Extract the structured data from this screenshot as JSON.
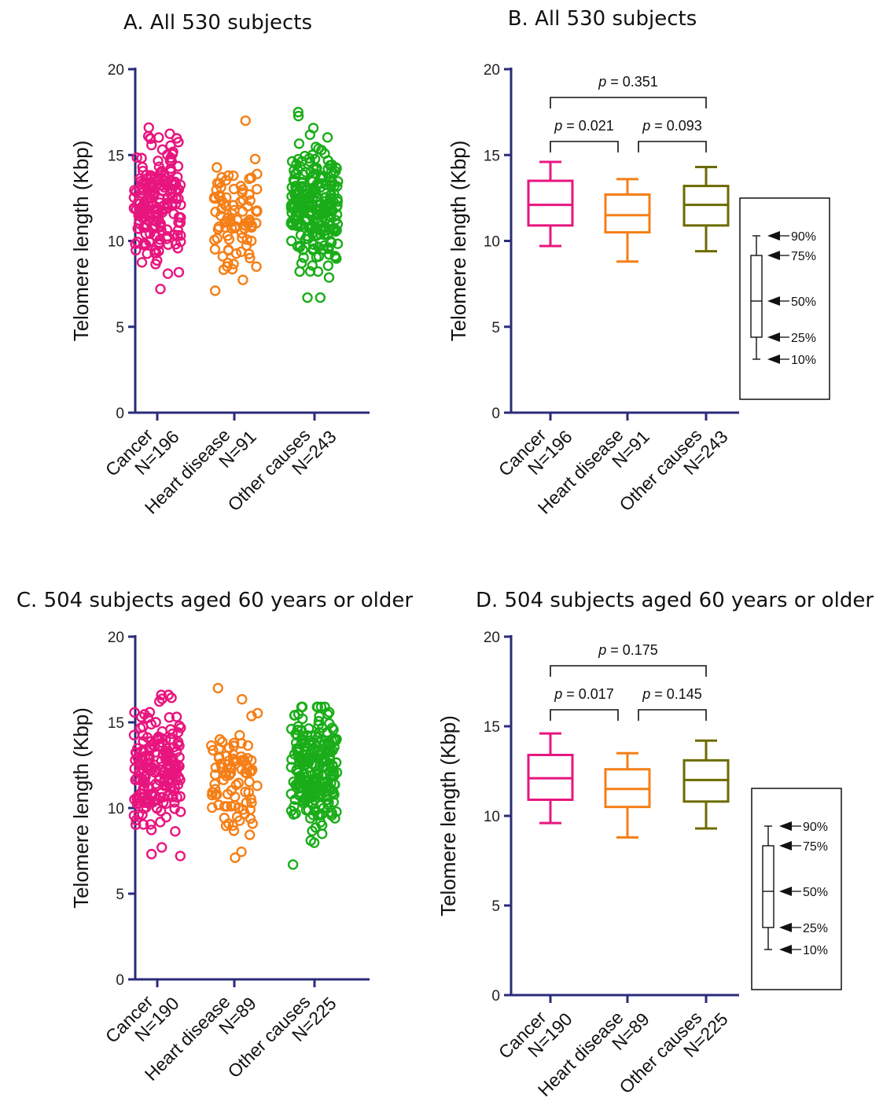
{
  "chart_data": [
    {
      "type": "scatter",
      "panel": "A",
      "title": "A. All 530 subjects",
      "ylabel": "Telomere length (Kbp)",
      "ylim": [
        0,
        20
      ],
      "yticks": [
        0,
        5,
        10,
        15,
        20
      ],
      "grid": false,
      "categories": [
        {
          "name": "Cancer",
          "n_label": "N=196",
          "color": "#e8157f",
          "median": 12.1,
          "spread_low": 7.2,
          "spread_high": 16.6,
          "count": 196
        },
        {
          "name": "Heart disease",
          "n_label": "N=91",
          "color": "#f57f17",
          "median": 11.5,
          "spread_low": 7.1,
          "spread_high": 17.0,
          "count": 91
        },
        {
          "name": "Other causes",
          "n_label": "N=243",
          "color": "#1aad19",
          "median": 12.0,
          "spread_low": 6.7,
          "spread_high": 17.5,
          "count": 243
        }
      ]
    },
    {
      "type": "box",
      "panel": "B",
      "title": "B. All 530 subjects",
      "ylabel": "Telomere length (Kbp)",
      "ylim": [
        0,
        20
      ],
      "yticks": [
        0,
        5,
        10,
        15,
        20
      ],
      "grid": false,
      "categories": [
        {
          "name": "Cancer",
          "n_label": "N=196",
          "color": "#e8157f",
          "p10": 9.7,
          "p25": 10.9,
          "p50": 12.1,
          "p75": 13.5,
          "p90": 14.6
        },
        {
          "name": "Heart disease",
          "n_label": "N=91",
          "color": "#f57f17",
          "p10": 8.8,
          "p25": 10.5,
          "p50": 11.5,
          "p75": 12.7,
          "p90": 13.6
        },
        {
          "name": "Other causes",
          "n_label": "N=243",
          "color": "#6b6b00",
          "p10": 9.4,
          "p25": 10.9,
          "p50": 12.1,
          "p75": 13.2,
          "p90": 14.3
        }
      ],
      "comparisons": [
        {
          "a": 0,
          "b": 1,
          "p": "0.021",
          "level": 1
        },
        {
          "a": 1,
          "b": 2,
          "p": "0.093",
          "level": 1
        },
        {
          "a": 0,
          "b": 2,
          "p": "0.351",
          "level": 2
        }
      ],
      "legend": {
        "placement": "right",
        "labels": [
          "90%",
          "75%",
          "50%",
          "25%",
          "10%"
        ]
      }
    },
    {
      "type": "scatter",
      "panel": "C",
      "title": "C. 504 subjects aged 60 years or older",
      "ylabel": "Telomere length (Kbp)",
      "ylim": [
        0,
        20
      ],
      "yticks": [
        0,
        5,
        10,
        15,
        20
      ],
      "grid": false,
      "categories": [
        {
          "name": "Cancer",
          "n_label": "N=190",
          "color": "#e8157f",
          "median": 12.1,
          "spread_low": 7.2,
          "spread_high": 16.6,
          "count": 190
        },
        {
          "name": "Heart disease",
          "n_label": "N=89",
          "color": "#f57f17",
          "median": 11.5,
          "spread_low": 7.1,
          "spread_high": 17.0,
          "count": 89
        },
        {
          "name": "Other causes",
          "n_label": "N=225",
          "color": "#1aad19",
          "median": 12.0,
          "spread_low": 6.7,
          "spread_high": 15.9,
          "count": 225
        }
      ]
    },
    {
      "type": "box",
      "panel": "D",
      "title": "D. 504 subjects aged 60 years or older",
      "ylabel": "Telomere length (Kbp)",
      "ylim": [
        0,
        20
      ],
      "yticks": [
        0,
        5,
        10,
        15,
        20
      ],
      "grid": false,
      "categories": [
        {
          "name": "Cancer",
          "n_label": "N=190",
          "color": "#e8157f",
          "p10": 9.6,
          "p25": 10.9,
          "p50": 12.1,
          "p75": 13.4,
          "p90": 14.6
        },
        {
          "name": "Heart disease",
          "n_label": "N=89",
          "color": "#f57f17",
          "p10": 8.8,
          "p25": 10.5,
          "p50": 11.5,
          "p75": 12.6,
          "p90": 13.5
        },
        {
          "name": "Other causes",
          "n_label": "N=225",
          "color": "#6b6b00",
          "p10": 9.3,
          "p25": 10.8,
          "p50": 12.0,
          "p75": 13.1,
          "p90": 14.2
        }
      ],
      "comparisons": [
        {
          "a": 0,
          "b": 1,
          "p": "0.017",
          "level": 1
        },
        {
          "a": 1,
          "b": 2,
          "p": "0.145",
          "level": 1
        },
        {
          "a": 0,
          "b": 2,
          "p": "0.175",
          "level": 2
        }
      ],
      "legend": {
        "placement": "right",
        "labels": [
          "90%",
          "75%",
          "50%",
          "25%",
          "10%"
        ]
      }
    }
  ],
  "colors": {
    "axis": "#2b2b7a",
    "box_legend": "#111111"
  },
  "p_prefix": "p",
  "p_eq": " = "
}
